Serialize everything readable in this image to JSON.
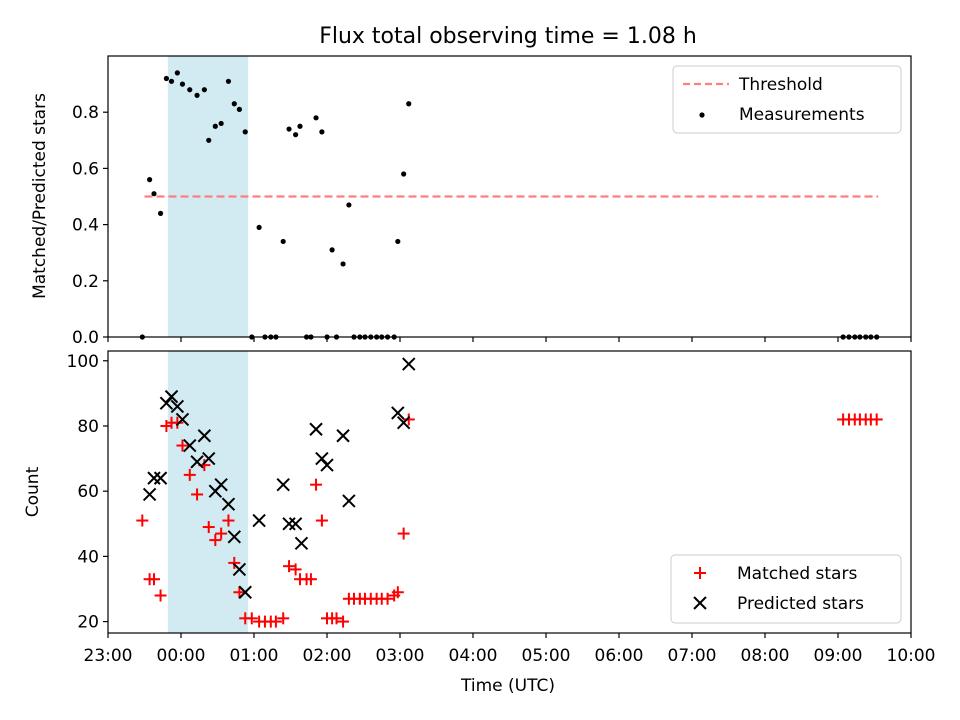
{
  "chart_data": [
    {
      "type": "scatter",
      "title": "Flux total observing time = 1.08 h",
      "xlabel": "",
      "ylabel": "Matched/Predicted stars",
      "ylim": [
        0,
        1.0
      ],
      "yticks": [
        "0.0",
        "0.2",
        "0.4",
        "0.6",
        "0.8"
      ],
      "yticks_values": [
        0,
        0.2,
        0.4,
        0.6,
        0.8
      ],
      "xlim_hours": [
        23.0,
        34.0
      ],
      "shaded_region_hours": [
        23.82,
        24.92
      ],
      "shaded_color": "#add8e6",
      "legend_position": "top-right",
      "series": [
        {
          "name": "Threshold",
          "kind": "dashed-line",
          "color": "#ff7f7f",
          "x": [
            23.5,
            33.55
          ],
          "y": [
            0.5,
            0.5
          ]
        },
        {
          "name": "Measurements",
          "kind": "points",
          "color": "#000000",
          "x": [
            23.47,
            23.57,
            23.63,
            23.72,
            23.8,
            23.87,
            23.95,
            24.02,
            24.12,
            24.22,
            24.32,
            24.38,
            24.47,
            24.55,
            24.65,
            24.73,
            24.8,
            24.88,
            24.97,
            25.07,
            25.15,
            25.23,
            25.3,
            25.4,
            25.48,
            25.57,
            25.63,
            25.72,
            25.78,
            25.85,
            25.93,
            26.0,
            26.07,
            26.13,
            26.22,
            26.3,
            26.37,
            26.45,
            26.52,
            26.6,
            26.68,
            26.75,
            26.83,
            26.92,
            26.97,
            27.05,
            27.12,
            33.07,
            33.15,
            33.23,
            33.3,
            33.38,
            33.45,
            33.53
          ],
          "y": [
            0.0,
            0.56,
            0.51,
            0.44,
            0.92,
            0.91,
            0.94,
            0.9,
            0.88,
            0.86,
            0.88,
            0.7,
            0.75,
            0.76,
            0.91,
            0.83,
            0.81,
            0.73,
            0.0,
            0.39,
            0.0,
            0.0,
            0.0,
            0.34,
            0.74,
            0.72,
            0.75,
            0.0,
            0.0,
            0.78,
            0.73,
            0.0,
            0.31,
            0.0,
            0.26,
            0.47,
            0.0,
            0.0,
            0.0,
            0.0,
            0.0,
            0.0,
            0.0,
            0.0,
            0.34,
            0.58,
            0.83,
            0.0,
            0.0,
            0.0,
            0.0,
            0.0,
            0.0,
            0.0
          ]
        }
      ]
    },
    {
      "type": "scatter",
      "title": "",
      "xlabel": "Time (UTC)",
      "ylabel": "Count",
      "ylim": [
        16.5,
        103
      ],
      "yticks": [
        "20",
        "40",
        "60",
        "80",
        "100"
      ],
      "yticks_values": [
        20,
        40,
        60,
        80,
        100
      ],
      "xlim_hours": [
        23.0,
        34.0
      ],
      "xticks": [
        "23:00",
        "00:00",
        "01:00",
        "02:00",
        "03:00",
        "04:00",
        "05:00",
        "06:00",
        "07:00",
        "08:00",
        "09:00",
        "10:00"
      ],
      "xticks_hours": [
        23,
        24,
        25,
        26,
        27,
        28,
        29,
        30,
        31,
        32,
        33,
        34
      ],
      "shaded_region_hours": [
        23.82,
        24.92
      ],
      "shaded_color": "#add8e6",
      "legend_position": "bottom-right",
      "series": [
        {
          "name": "Matched stars",
          "kind": "plus",
          "color": "#ff0000",
          "x": [
            23.47,
            23.57,
            23.63,
            23.72,
            23.8,
            23.87,
            23.95,
            24.02,
            24.12,
            24.22,
            24.32,
            24.38,
            24.47,
            24.55,
            24.65,
            24.73,
            24.8,
            24.88,
            24.97,
            25.07,
            25.15,
            25.23,
            25.3,
            25.4,
            25.48,
            25.57,
            25.63,
            25.72,
            25.78,
            25.85,
            25.93,
            26.0,
            26.07,
            26.13,
            26.22,
            26.3,
            26.37,
            26.45,
            26.52,
            26.6,
            26.68,
            26.75,
            26.83,
            26.92,
            26.97,
            27.05,
            27.12,
            33.07,
            33.15,
            33.23,
            33.3,
            33.38,
            33.45,
            33.53
          ],
          "y": [
            51,
            33,
            33,
            28,
            80,
            81,
            81,
            74,
            65,
            59,
            68,
            49,
            45,
            47,
            51,
            38,
            29,
            21,
            21,
            20,
            20,
            20,
            20,
            21,
            37,
            36,
            33,
            33,
            33,
            62,
            51,
            21,
            21,
            21,
            20,
            27,
            27,
            27,
            27,
            27,
            27,
            27,
            27,
            28,
            29,
            47,
            82,
            82,
            82,
            82,
            82,
            82,
            82,
            82
          ]
        },
        {
          "name": "Predicted stars",
          "kind": "cross",
          "color": "#000000",
          "x": [
            23.57,
            23.63,
            23.72,
            23.8,
            23.87,
            23.95,
            24.02,
            24.12,
            24.22,
            24.32,
            24.38,
            24.47,
            24.55,
            24.65,
            24.73,
            24.8,
            24.88,
            25.07,
            25.4,
            25.48,
            25.57,
            25.65,
            25.85,
            25.93,
            26.0,
            26.22,
            26.3,
            26.97,
            27.05,
            27.12
          ],
          "y": [
            59,
            64,
            64,
            87,
            89,
            86,
            82,
            74,
            69,
            77,
            70,
            60,
            62,
            56,
            46,
            36,
            29,
            51,
            62,
            50,
            50,
            44,
            79,
            70,
            68,
            77,
            57,
            84,
            81,
            99
          ]
        }
      ]
    }
  ]
}
